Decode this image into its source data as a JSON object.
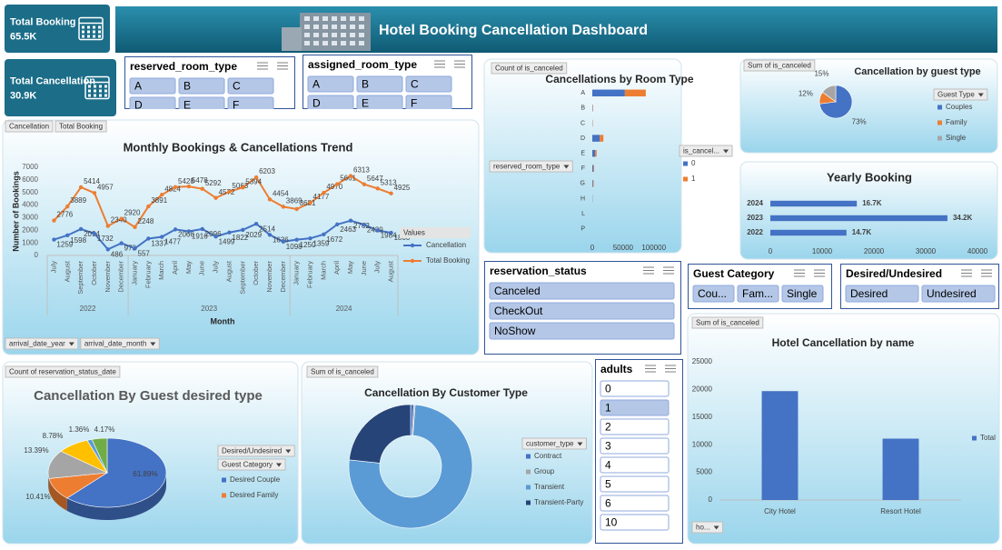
{
  "header": {
    "title": "Hotel Booking Cancellation Dashboard"
  },
  "kpis": [
    {
      "label": "Total Booking",
      "value": "65.5K"
    },
    {
      "label": "Total Cancellation",
      "value": "30.9K"
    }
  ],
  "slicers": [
    {
      "title": "reserved_room_type",
      "items": [
        "A",
        "B",
        "C",
        "D",
        "E",
        "F"
      ]
    },
    {
      "title": "assigned_room_type",
      "items": [
        "A",
        "B",
        "C",
        "D",
        "E",
        "F"
      ]
    },
    {
      "title": "reservation_status",
      "items": [
        "Canceled",
        "CheckOut",
        "NoShow"
      ]
    },
    {
      "title": "Guest Category",
      "items": [
        "Cou...",
        "Fam...",
        "Single"
      ]
    },
    {
      "title": "Desired/Undesired",
      "items": [
        "Desired",
        "Undesired"
      ]
    },
    {
      "title": "adults",
      "items": [
        "0",
        "1",
        "2",
        "3",
        "4",
        "5",
        "6",
        "10"
      ],
      "highlighted": [
        false,
        true,
        false,
        false,
        false,
        false,
        false,
        false
      ]
    }
  ],
  "chart_data": [
    {
      "type": "line",
      "title": "Monthly Bookings & Cancellations Trend",
      "y_label": "Number of Bookings",
      "x_label": "Month",
      "groups": [
        {
          "label": "2022",
          "categories": [
            "July",
            "August",
            "September",
            "October",
            "November",
            "December"
          ]
        },
        {
          "label": "2023",
          "categories": [
            "January",
            "February",
            "March",
            "April",
            "May",
            "June",
            "July",
            "August",
            "September",
            "October",
            "November",
            "December"
          ]
        },
        {
          "label": "2024",
          "categories": [
            "January",
            "February",
            "March",
            "April",
            "May",
            "June",
            "July",
            "August"
          ]
        }
      ],
      "series": [
        {
          "name": "Cancellation",
          "color": "#4472c4",
          "values": [
            1259,
            1598,
            2094,
            1732,
            486,
            973,
            557,
            1337,
            1477,
            2066,
            1916,
            2096,
            1499,
            1822,
            2029,
            2514,
            1636,
            1098,
            1250,
            1359,
            1672,
            2463,
            2762,
            2439,
            1984,
            1800
          ]
        },
        {
          "name": "Total Booking",
          "color": "#ed7d31",
          "values": [
            2776,
            3889,
            5414,
            4957,
            2340,
            2920,
            2248,
            3891,
            4824,
            5428,
            5478,
            5292,
            4572,
            5063,
            5394,
            6203,
            4454,
            3869,
            3681,
            4177,
            4970,
            5661,
            6313,
            5647,
            5313,
            4925
          ]
        }
      ],
      "ylim": [
        0,
        7000
      ],
      "yticks": [
        0,
        1000,
        2000,
        3000,
        4000,
        5000,
        6000,
        7000
      ],
      "legend_title": "Values",
      "field_buttons": [
        "Cancellation",
        "Total Booking",
        "arrival_date_year",
        "arrival_date_month"
      ]
    },
    {
      "type": "bar",
      "orientation": "horizontal",
      "stacked": true,
      "title": "Cancellations by Room Type",
      "categories": [
        "A",
        "B",
        "C",
        "D",
        "E",
        "F",
        "G",
        "H",
        "L",
        "P"
      ],
      "series": [
        {
          "name": "0",
          "color": "#4472c4",
          "values": [
            53000,
            600,
            400,
            12000,
            4500,
            1800,
            1200,
            300,
            5,
            10
          ]
        },
        {
          "name": "1",
          "color": "#ed7d31",
          "values": [
            34000,
            500,
            400,
            6000,
            2500,
            1200,
            1000,
            200,
            1,
            10
          ]
        }
      ],
      "xlim": [
        0,
        130000
      ],
      "xticks": [
        0,
        50000,
        100000
      ],
      "legend_title": "is_cancel...",
      "field_buttons": [
        "Count of is_canceled",
        "reserved_room_type"
      ]
    },
    {
      "type": "pie",
      "title": "Cancellation by guest type",
      "categories": [
        "Couples",
        "Family",
        "Single"
      ],
      "values": [
        73,
        12,
        15
      ],
      "value_labels": [
        "73%",
        "12%",
        "15%"
      ],
      "colors": [
        "#4472c4",
        "#ed7d31",
        "#a5a5a5"
      ],
      "legend_title": "Guest Type",
      "field_buttons": [
        "Sum of is_canceled"
      ]
    },
    {
      "type": "bar",
      "orientation": "horizontal",
      "title": "Yearly Booking",
      "categories": [
        "2024",
        "2023",
        "2022"
      ],
      "values": [
        16700,
        34200,
        14700
      ],
      "value_labels": [
        "16.7K",
        "34.2K",
        "14.7K"
      ],
      "color": "#4472c4",
      "xlim": [
        0,
        40000
      ],
      "xticks": [
        0,
        10000,
        20000,
        30000,
        40000
      ]
    },
    {
      "type": "pie",
      "three_d": true,
      "title": "Cancellation By Guest desired type",
      "categories": [
        "Desired Couple",
        "Desired Family",
        null,
        null,
        null,
        null
      ],
      "values": [
        61.89,
        10.41,
        13.39,
        8.78,
        1.36,
        4.17
      ],
      "value_labels": [
        "61.89%",
        "10.41%",
        "13.39%",
        "8.78%",
        "1.36%",
        "4.17%"
      ],
      "colors": [
        "#4472c4",
        "#ed7d31",
        "#a5a5a5",
        "#ffc000",
        "#5b9bd5",
        "#70ad47"
      ],
      "field_buttons": [
        "Count of reservation_status_date",
        "Desired/Undesired",
        "Guest Category"
      ]
    },
    {
      "type": "donut",
      "title": "Cancellation By Customer Type",
      "categories": [
        "Contract",
        "Group",
        "Transient",
        "Transient-Party"
      ],
      "values": [
        250,
        120,
        23300,
        7200
      ],
      "colors": [
        "#4472c4",
        "#a5a5a5",
        "#5b9bd5",
        "#264478"
      ],
      "legend_title": "customer_type",
      "field_buttons": [
        "Sum of is_canceled"
      ]
    },
    {
      "type": "bar",
      "orientation": "vertical",
      "title": "Hotel Cancellation by name",
      "categories": [
        "City Hotel",
        "Resort Hotel"
      ],
      "series": [
        {
          "name": "Total",
          "color": "#4472c4",
          "values": [
            19700,
            11100
          ]
        }
      ],
      "ylim": [
        0,
        25000
      ],
      "yticks": [
        0,
        5000,
        10000,
        15000,
        20000,
        25000
      ],
      "field_buttons": [
        "Sum of is_canceled",
        "ho..."
      ]
    }
  ]
}
